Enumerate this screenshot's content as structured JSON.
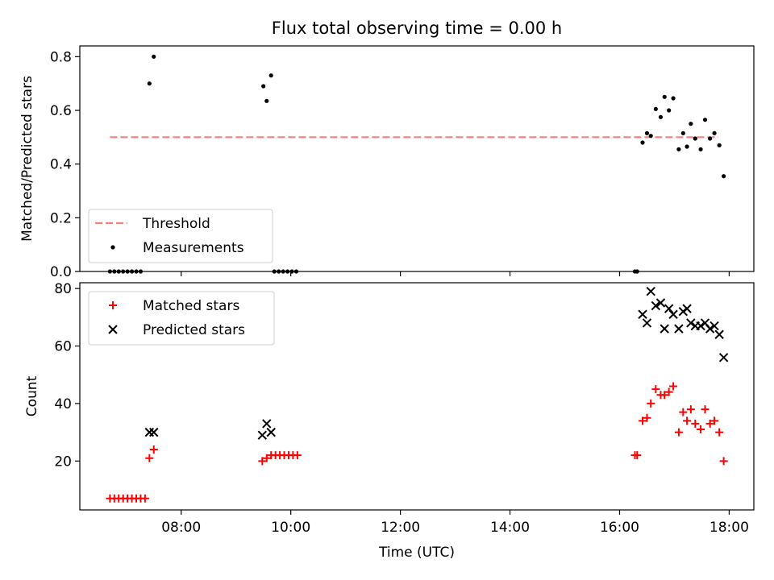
{
  "chart_data": [
    {
      "type": "scatter",
      "title": "Flux total observing time = 0.00 h",
      "xlabel": "",
      "ylabel": "Matched/Predicted stars",
      "x_unit": "hours UTC",
      "xlim": [
        6.15,
        18.45
      ],
      "ylim": [
        0.0,
        0.84
      ],
      "yticks": [
        "0.0",
        "0.2",
        "0.4",
        "0.6",
        "0.8"
      ],
      "xticks": [
        8,
        10,
        12,
        14,
        16,
        18
      ],
      "xtick_labels_visible": false,
      "legend": {
        "placement": "lower-left",
        "entries": [
          "Threshold",
          "Measurements"
        ]
      },
      "threshold": {
        "name": "Threshold",
        "value": 0.5,
        "x_range": [
          6.7,
          17.8
        ],
        "color": "#fa7f7f",
        "style": "dashed"
      },
      "series": [
        {
          "name": "Measurements",
          "marker": "dot",
          "color": "#000000",
          "points": [
            [
              6.7,
              0.0
            ],
            [
              6.78,
              0.0
            ],
            [
              6.86,
              0.0
            ],
            [
              6.94,
              0.0
            ],
            [
              7.02,
              0.0
            ],
            [
              7.1,
              0.0
            ],
            [
              7.18,
              0.0
            ],
            [
              7.26,
              0.0
            ],
            [
              7.42,
              0.7
            ],
            [
              7.5,
              0.8
            ],
            [
              9.5,
              0.69
            ],
            [
              9.56,
              0.635
            ],
            [
              9.64,
              0.73
            ],
            [
              9.7,
              0.0
            ],
            [
              9.78,
              0.0
            ],
            [
              9.86,
              0.0
            ],
            [
              9.94,
              0.0
            ],
            [
              10.02,
              0.0
            ],
            [
              10.1,
              0.0
            ],
            [
              16.28,
              0.0
            ],
            [
              16.32,
              0.0
            ],
            [
              16.42,
              0.48
            ],
            [
              16.5,
              0.515
            ],
            [
              16.57,
              0.505
            ],
            [
              16.66,
              0.605
            ],
            [
              16.75,
              0.575
            ],
            [
              16.82,
              0.65
            ],
            [
              16.9,
              0.6
            ],
            [
              16.98,
              0.645
            ],
            [
              17.08,
              0.455
            ],
            [
              17.16,
              0.515
            ],
            [
              17.23,
              0.465
            ],
            [
              17.3,
              0.55
            ],
            [
              17.38,
              0.495
            ],
            [
              17.48,
              0.455
            ],
            [
              17.56,
              0.565
            ],
            [
              17.65,
              0.495
            ],
            [
              17.73,
              0.515
            ],
            [
              17.82,
              0.47
            ],
            [
              17.9,
              0.355
            ]
          ]
        }
      ]
    },
    {
      "type": "scatter",
      "title": "",
      "xlabel": "Time (UTC)",
      "ylabel": "Count",
      "x_unit": "hours UTC",
      "xlim": [
        6.15,
        18.45
      ],
      "ylim": [
        3,
        82
      ],
      "yticks": [
        "20",
        "40",
        "60",
        "80"
      ],
      "xticks": [
        "08:00",
        "10:00",
        "12:00",
        "14:00",
        "16:00",
        "18:00"
      ],
      "legend": {
        "placement": "upper-left",
        "entries": [
          "Matched stars",
          "Predicted stars"
        ]
      },
      "series": [
        {
          "name": "Matched stars",
          "marker": "plus",
          "color": "#ff0000",
          "points": [
            [
              6.7,
              7
            ],
            [
              6.78,
              7
            ],
            [
              6.86,
              7
            ],
            [
              6.94,
              7
            ],
            [
              7.02,
              7
            ],
            [
              7.1,
              7
            ],
            [
              7.18,
              7
            ],
            [
              7.26,
              7
            ],
            [
              7.34,
              7
            ],
            [
              7.42,
              21
            ],
            [
              7.5,
              24
            ],
            [
              9.48,
              20
            ],
            [
              9.56,
              21
            ],
            [
              9.64,
              22
            ],
            [
              9.72,
              22
            ],
            [
              9.8,
              22
            ],
            [
              9.88,
              22
            ],
            [
              9.96,
              22
            ],
            [
              10.04,
              22
            ],
            [
              10.12,
              22
            ],
            [
              16.28,
              22
            ],
            [
              16.32,
              22
            ],
            [
              16.42,
              34
            ],
            [
              16.5,
              35
            ],
            [
              16.57,
              40
            ],
            [
              16.66,
              45
            ],
            [
              16.75,
              43
            ],
            [
              16.82,
              43
            ],
            [
              16.9,
              44
            ],
            [
              16.98,
              46
            ],
            [
              17.08,
              30
            ],
            [
              17.16,
              37
            ],
            [
              17.23,
              34
            ],
            [
              17.3,
              38
            ],
            [
              17.38,
              33
            ],
            [
              17.48,
              31
            ],
            [
              17.56,
              38
            ],
            [
              17.65,
              33
            ],
            [
              17.73,
              34
            ],
            [
              17.82,
              30
            ],
            [
              17.9,
              20
            ]
          ]
        },
        {
          "name": "Predicted stars",
          "marker": "x",
          "color": "#000000",
          "points": [
            [
              7.42,
              30
            ],
            [
              7.5,
              30
            ],
            [
              9.48,
              29
            ],
            [
              9.56,
              33
            ],
            [
              9.64,
              30
            ],
            [
              16.42,
              71
            ],
            [
              16.5,
              68
            ],
            [
              16.57,
              79
            ],
            [
              16.66,
              74
            ],
            [
              16.75,
              75
            ],
            [
              16.82,
              66
            ],
            [
              16.9,
              73
            ],
            [
              16.98,
              71
            ],
            [
              17.08,
              66
            ],
            [
              17.16,
              72
            ],
            [
              17.23,
              73
            ],
            [
              17.3,
              68
            ],
            [
              17.38,
              67
            ],
            [
              17.48,
              67
            ],
            [
              17.56,
              68
            ],
            [
              17.65,
              66
            ],
            [
              17.73,
              67
            ],
            [
              17.82,
              64
            ],
            [
              17.9,
              56
            ]
          ]
        }
      ]
    }
  ]
}
